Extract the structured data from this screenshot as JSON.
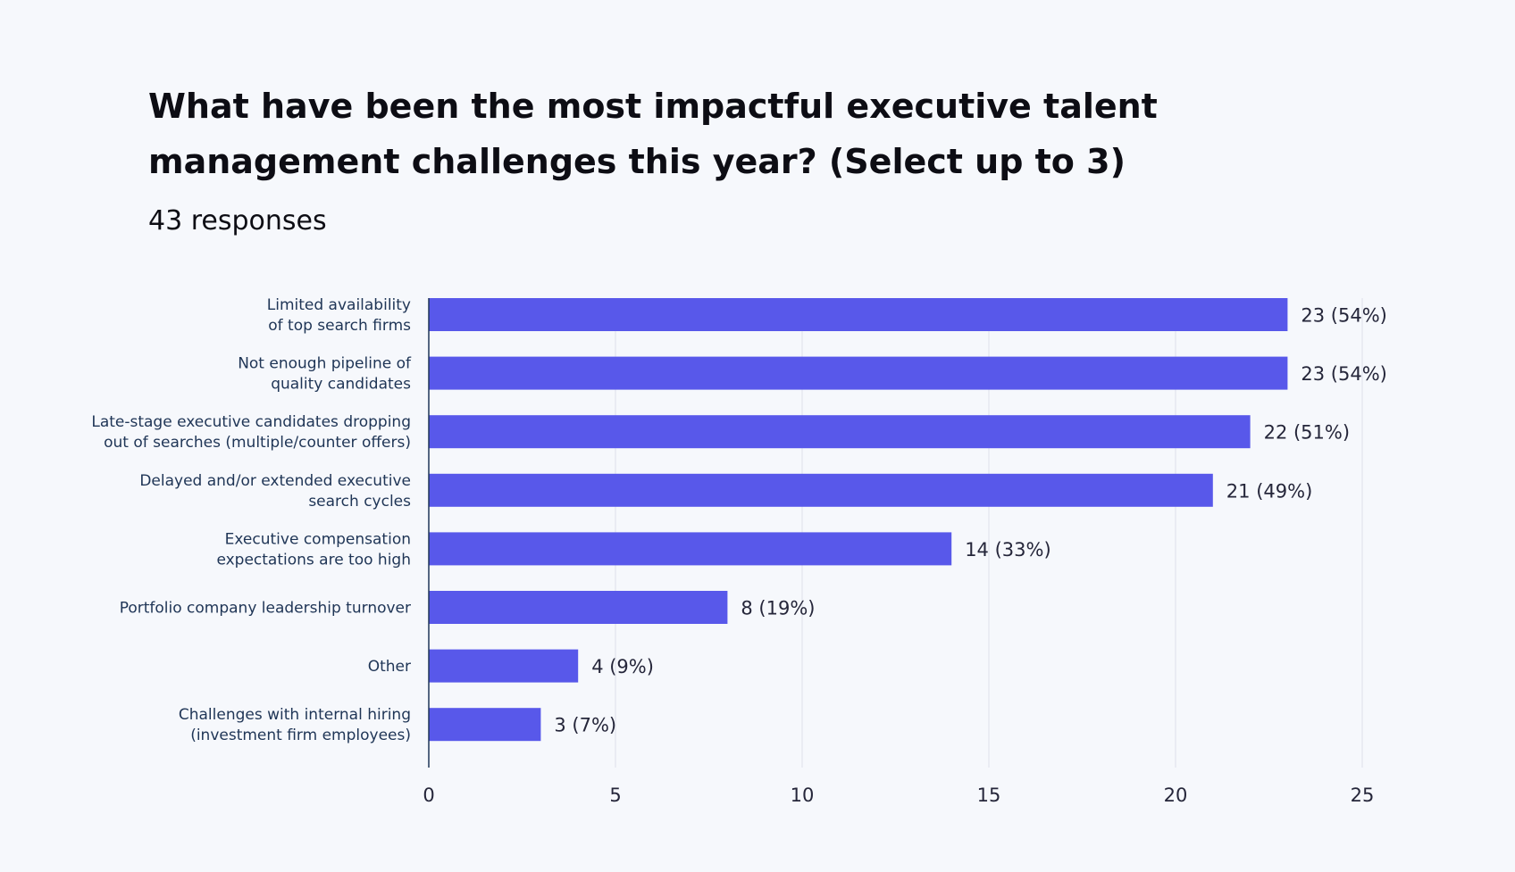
{
  "chart_data": {
    "type": "bar",
    "orientation": "horizontal",
    "title": "What have been the most impactful executive talent management challenges this year?  (Select up to 3)",
    "subtitle": "43 responses",
    "categories": [
      [
        "Limited availability",
        "of top search firms"
      ],
      [
        "Not enough pipeline of",
        "quality candidates"
      ],
      [
        "Late-stage executive candidates dropping",
        "out of searches (multiple/counter offers)"
      ],
      [
        "Delayed and/or extended executive",
        "search cycles"
      ],
      [
        "Executive compensation",
        "expectations are too high"
      ],
      [
        "Portfolio company leadership turnover"
      ],
      [
        "Other"
      ],
      [
        "Challenges with internal hiring",
        "(investment firm employees)"
      ]
    ],
    "values": [
      23,
      23,
      22,
      21,
      14,
      8,
      4,
      3
    ],
    "data_labels": [
      "23 (54%)",
      "23 (54%)",
      "22 (51%)",
      "21 (49%)",
      "14 (33%)",
      "8 (19%)",
      "4 (9%)",
      "3 (7%)"
    ],
    "xlim": [
      0,
      25
    ],
    "xticks": [
      0,
      5,
      10,
      15,
      20,
      25
    ],
    "grid": "vertical",
    "bar_color": "#5858ea",
    "grid_color": "#dde1ea",
    "axis_color": "#1f3556"
  }
}
